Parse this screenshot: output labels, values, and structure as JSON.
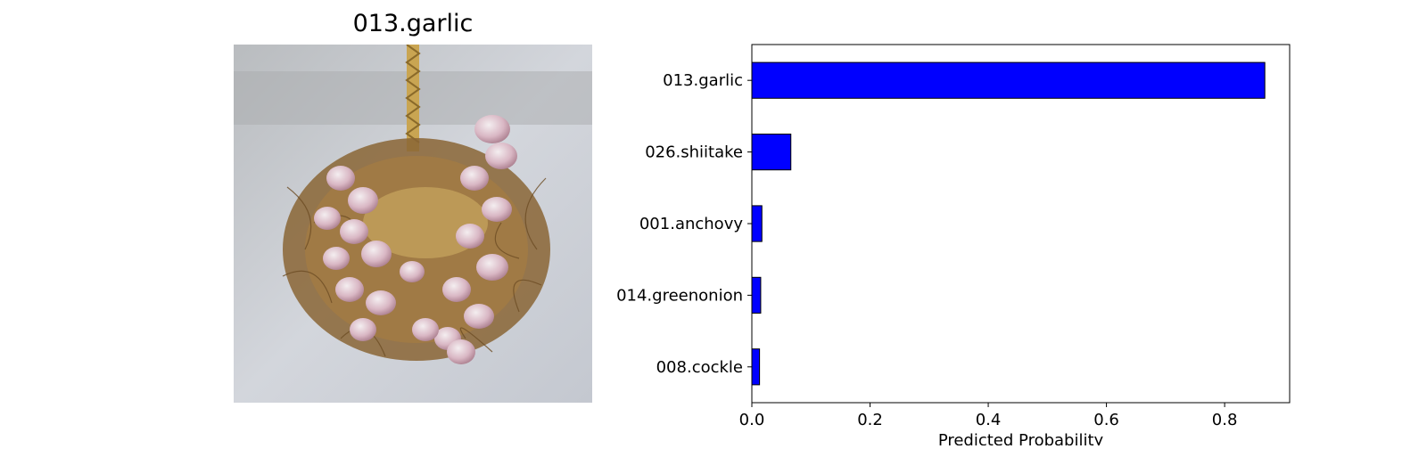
{
  "image_panel": {
    "title": "013.garlic",
    "subject": "garlic-bundle-photo"
  },
  "chart_data": {
    "type": "bar",
    "orientation": "horizontal",
    "title": "",
    "xlabel": "Predicted Probability",
    "ylabel": "",
    "categories": [
      "013.garlic",
      "026.shiitake",
      "001.anchovy",
      "014.greenonion",
      "008.cockle"
    ],
    "values": [
      0.868,
      0.066,
      0.017,
      0.015,
      0.013
    ],
    "xlim": [
      0,
      0.91
    ],
    "xticks": [
      0.0,
      0.2,
      0.4,
      0.6,
      0.8
    ],
    "xtick_labels": [
      "0.0",
      "0.2",
      "0.4",
      "0.6",
      "0.8"
    ],
    "bar_color": "#0000ff",
    "edge_color": "#000000",
    "grid": false,
    "legend": "none"
  }
}
